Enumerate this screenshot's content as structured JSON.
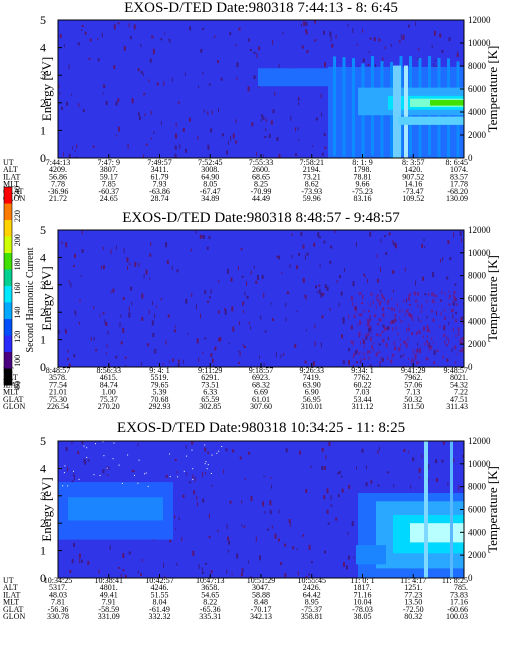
{
  "page": {
    "colorbar": {
      "label": "Second Harmonic Current",
      "ticks": [
        "240",
        "220",
        "200",
        "180",
        "160",
        "140",
        "120",
        "100",
        "80"
      ],
      "colors": [
        "#ff0000",
        "#ff7a00",
        "#ffd200",
        "#d0ff00",
        "#40e000",
        "#00d090",
        "#00e8ff",
        "#00a8ff",
        "#0050ff",
        "#2a2aff",
        "#4b0082",
        "#000000"
      ]
    }
  },
  "chart_data": [
    {
      "type": "heatmap",
      "title": "EXOS-D/TED   Date:980318   7:44:13 - 8: 6:45",
      "ylabel": "Energy [eV]",
      "y2label": "Temperature [K]",
      "yticks": [
        "0",
        "1",
        "2",
        "3",
        "4",
        "5"
      ],
      "ylim": [
        0,
        5
      ],
      "y2ticks": [
        "0",
        "2000",
        "4000",
        "6000",
        "8000",
        "10000",
        "12000"
      ],
      "y2lim": [
        0,
        12000
      ],
      "background": "#3035e8",
      "rows": [
        {
          "name": "UT",
          "values": [
            "7:44:13",
            "7:47: 9",
            "7:49:57",
            "7:52:45",
            "7:55:33",
            "7:58:21",
            "8: 1: 9",
            "8: 3:57",
            "8: 6:45"
          ]
        },
        {
          "name": "ALT",
          "values": [
            "4209.",
            "3807.",
            "3411.",
            "3008.",
            "2600.",
            "2194.",
            "1798.",
            "1420.",
            "1074."
          ]
        },
        {
          "name": "ILAT",
          "values": [
            "56.86",
            "59.17",
            "61.79",
            "64.90",
            "68.65",
            "73.21",
            "78.81",
            "907.52",
            "83.57"
          ]
        },
        {
          "name": "MLT",
          "values": [
            "7.78",
            "7.85",
            "7.93",
            "8.05",
            "8.25",
            "8.62",
            "9.66",
            "14.16",
            "17.78"
          ]
        },
        {
          "name": "GLAT",
          "values": [
            "-36.96",
            "-60.37",
            "-63.86",
            "-67.47",
            "-70.99",
            "-73.93",
            "-75.23",
            "-73.47",
            "-68.20"
          ]
        },
        {
          "name": "GLON",
          "values": [
            "21.72",
            "24.65",
            "28.74",
            "34.89",
            "44.49",
            "59.96",
            "83.16",
            "109.52",
            "130.09"
          ]
        }
      ]
    },
    {
      "type": "heatmap",
      "title": "EXOS-D/TED   Date:980318   8:48:57 - 9:48:57",
      "ylabel": "Energy [eV]",
      "y2label": "Temperature [K]",
      "yticks": [
        "0",
        "1",
        "2",
        "3",
        "4",
        "5"
      ],
      "ylim": [
        0,
        5
      ],
      "y2ticks": [
        "0",
        "2000",
        "4000",
        "6000",
        "8000",
        "10000",
        "12000"
      ],
      "y2lim": [
        0,
        12000
      ],
      "background": "#3035e8",
      "rows": [
        {
          "name": "UT",
          "values": [
            "8:48:57",
            "8:56:33",
            "9: 4: 1",
            "9:11:29",
            "9:18:57",
            "9:26:33",
            "9:34: 1",
            "9:41:29",
            "9:48:57"
          ]
        },
        {
          "name": "ALT",
          "values": [
            "3578.",
            "4615.",
            "5519.",
            "6291.",
            "6923.",
            "7419.",
            "7762.",
            "7962.",
            "8021."
          ]
        },
        {
          "name": "ILAT",
          "values": [
            "77.54",
            "84.74",
            "79.65",
            "73.51",
            "68.32",
            "63.90",
            "60.22",
            "57.06",
            "54.32"
          ]
        },
        {
          "name": "MLT",
          "values": [
            "21.01",
            "1.00",
            "5.39",
            "6.33",
            "6.69",
            "6.90",
            "7.03",
            "7.13",
            "7.22"
          ]
        },
        {
          "name": "GLAT",
          "values": [
            "75.30",
            "75.37",
            "70.68",
            "65.59",
            "61.01",
            "56.95",
            "53.44",
            "50.32",
            "47.51"
          ]
        },
        {
          "name": "GLON",
          "values": [
            "226.54",
            "270.20",
            "292.93",
            "302.85",
            "307.60",
            "310.01",
            "311.12",
            "311.50",
            "311.43"
          ]
        }
      ]
    },
    {
      "type": "heatmap",
      "title": "EXOS-D/TED   Date:980318   10:34:25 - 11: 8:25",
      "ylabel": "Energy [eV]",
      "y2label": "Temperature [K]",
      "yticks": [
        "0",
        "1",
        "2",
        "3",
        "4",
        "5"
      ],
      "ylim": [
        0,
        5
      ],
      "y2ticks": [
        "0",
        "2000",
        "4000",
        "6000",
        "8000",
        "10000",
        "12000"
      ],
      "y2lim": [
        0,
        12000
      ],
      "background": "#3035e8",
      "rows": [
        {
          "name": "UT",
          "values": [
            "10:34:25",
            "10:38:41",
            "10:42:57",
            "10:47:13",
            "10:51:29",
            "10:55:45",
            "11: 0: 1",
            "11: 4:17",
            "11: 8:25"
          ]
        },
        {
          "name": "ALT",
          "values": [
            "5317.",
            "4801.",
            "4246.",
            "3658.",
            "3047.",
            "2426.",
            "1817.",
            "1251.",
            "785."
          ]
        },
        {
          "name": "ILAT",
          "values": [
            "48.03",
            "49.41",
            "51.55",
            "54.65",
            "58.88",
            "64.42",
            "71.16",
            "77.23",
            "73.83"
          ]
        },
        {
          "name": "MLT",
          "values": [
            "7.81",
            "7.91",
            "8.04",
            "8.22",
            "8.48",
            "8.95",
            "10.04",
            "13.50",
            "17.16"
          ]
        },
        {
          "name": "GLAT",
          "values": [
            "-56.36",
            "-58.59",
            "-61.49",
            "-65.36",
            "-70.17",
            "-75.37",
            "-78.03",
            "-72.50",
            "-60.66"
          ]
        },
        {
          "name": "GLON",
          "values": [
            "330.78",
            "331.09",
            "332.32",
            "335.31",
            "342.13",
            "358.81",
            "38.05",
            "80.32",
            "100.03"
          ]
        }
      ]
    }
  ]
}
